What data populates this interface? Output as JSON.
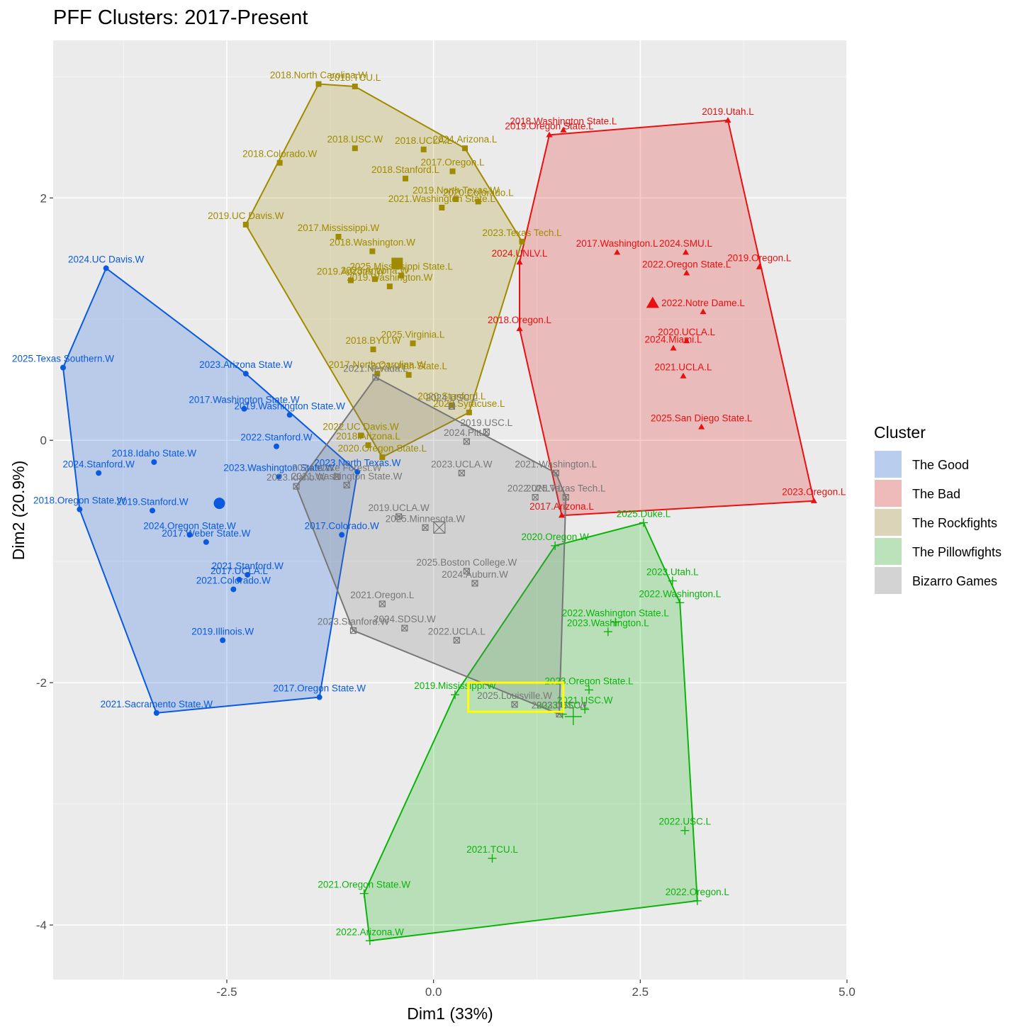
{
  "chart_data": {
    "type": "scatter",
    "title": "PFF Clusters: 2017-Present",
    "xlabel": "Dim1 (33%)",
    "ylabel": "Dim2 (20.9%)",
    "xlim": [
      -4.6,
      5.0
    ],
    "ylim": [
      -4.45,
      3.3
    ],
    "xticks": [
      -2.5,
      0.0,
      2.5,
      5.0
    ],
    "xtick_labels": [
      "-2.5",
      "0.0",
      "2.5",
      "5.0"
    ],
    "yticks": [
      -4,
      -2,
      0,
      2
    ],
    "ytick_labels": [
      "-4",
      "-2",
      "0",
      "2"
    ],
    "grid": true,
    "legend": {
      "title": "Cluster",
      "position": "right"
    },
    "series": [
      {
        "name": "The Good",
        "color": "#0a5ae0",
        "fill": "#b9cdef",
        "marker": "circle",
        "centroid": [
          -2.59,
          -0.52
        ],
        "hull": [
          [
            -3.96,
            1.42
          ],
          [
            -4.48,
            0.6
          ],
          [
            -4.28,
            -0.57
          ],
          [
            -3.35,
            -2.25
          ],
          [
            -1.38,
            -2.12
          ],
          [
            -0.92,
            -0.26
          ],
          [
            -2.27,
            0.55
          ]
        ],
        "points": [
          {
            "label": "2024.UC Davis.W",
            "x": -3.96,
            "y": 1.42
          },
          {
            "label": "2025.Texas Southern.W",
            "x": -4.48,
            "y": 0.6
          },
          {
            "label": "2023.Arizona State.W",
            "x": -2.27,
            "y": 0.55
          },
          {
            "label": "2017.Washington State.W",
            "x": -2.29,
            "y": 0.26
          },
          {
            "label": "2019.Washington State.W",
            "x": -1.74,
            "y": 0.21
          },
          {
            "label": "2022.Stanford.W",
            "x": -1.9,
            "y": -0.05
          },
          {
            "label": "2018.Idaho State.W",
            "x": -3.38,
            "y": -0.18
          },
          {
            "label": "2024.Stanford.W",
            "x": -4.05,
            "y": -0.27
          },
          {
            "label": "2023.Washington State.W",
            "x": -1.87,
            "y": -0.3
          },
          {
            "label": "2023.North Texas.W",
            "x": -0.92,
            "y": -0.26
          },
          {
            "label": "2018.Oregon State.W",
            "x": -4.28,
            "y": -0.57
          },
          {
            "label": "2019.Stanford.W",
            "x": -3.4,
            "y": -0.58
          },
          {
            "label": "2024.Oregon State.W",
            "x": -2.95,
            "y": -0.78
          },
          {
            "label": "2017.Weber State.W",
            "x": -2.75,
            "y": -0.84
          },
          {
            "label": "2017.Colorado.W",
            "x": -1.11,
            "y": -0.78
          },
          {
            "label": "2021.Stanford.W",
            "x": -2.25,
            "y": -1.11
          },
          {
            "label": "2017.UCLA.L",
            "x": -2.35,
            "y": -1.15
          },
          {
            "label": "2021.Colorado.W",
            "x": -2.42,
            "y": -1.23
          },
          {
            "label": "2019.Illinois.W",
            "x": -2.55,
            "y": -1.65
          },
          {
            "label": "2017.Oregon State.W",
            "x": -1.38,
            "y": -2.12
          },
          {
            "label": "2021.Sacramento State.W",
            "x": -3.35,
            "y": -2.25
          }
        ]
      },
      {
        "name": "The Bad",
        "color": "#e81010",
        "fill": "#efbaba",
        "marker": "triangle",
        "centroid": [
          2.65,
          1.13
        ],
        "hull": [
          [
            1.4,
            2.52
          ],
          [
            3.56,
            2.64
          ],
          [
            4.6,
            -0.5
          ],
          [
            1.55,
            -0.62
          ],
          [
            1.04,
            0.92
          ],
          [
            1.04,
            1.47
          ]
        ],
        "points": [
          {
            "label": "2019.Utah.L",
            "x": 3.56,
            "y": 2.64
          },
          {
            "label": "2019.Oregon State.L",
            "x": 1.4,
            "y": 2.52
          },
          {
            "label": "2018.Washington State.L",
            "x": 1.57,
            "y": 2.56
          },
          {
            "label": "2017.Washington.L",
            "x": 2.22,
            "y": 1.55
          },
          {
            "label": "2024.SMU.L",
            "x": 3.05,
            "y": 1.55
          },
          {
            "label": "2024.UNLV.L",
            "x": 1.04,
            "y": 1.47
          },
          {
            "label": "2022.Oregon State.L",
            "x": 3.06,
            "y": 1.38
          },
          {
            "label": "2019.Oregon.L",
            "x": 3.94,
            "y": 1.43
          },
          {
            "label": "2022.Notre Dame.L",
            "x": 3.26,
            "y": 1.06
          },
          {
            "label": "2018.Oregon.L",
            "x": 1.04,
            "y": 0.92
          },
          {
            "label": "2020.UCLA.L",
            "x": 3.06,
            "y": 0.82
          },
          {
            "label": "2024.Miami.L",
            "x": 2.9,
            "y": 0.76
          },
          {
            "label": "2021.UCLA.L",
            "x": 3.02,
            "y": 0.53
          },
          {
            "label": "2025.San Diego State.L",
            "x": 3.24,
            "y": 0.11
          },
          {
            "label": "2023.Oregon.L",
            "x": 4.6,
            "y": -0.5
          },
          {
            "label": "2017.Arizona.L",
            "x": 1.55,
            "y": -0.62
          }
        ]
      },
      {
        "name": "The Rockfights",
        "color": "#a08b00",
        "fill": "#dbd4b8",
        "marker": "square",
        "centroid": [
          -0.44,
          1.46
        ],
        "hull": [
          [
            -1.39,
            2.94
          ],
          [
            -0.95,
            2.92
          ],
          [
            0.38,
            2.41
          ],
          [
            1.07,
            1.64
          ],
          [
            0.43,
            0.23
          ],
          [
            -0.62,
            -0.14
          ],
          [
            -2.27,
            1.78
          ]
        ],
        "points": [
          {
            "label": "2018.North Carolina.W",
            "x": -1.39,
            "y": 2.94
          },
          {
            "label": "2018.TCU.L",
            "x": -0.95,
            "y": 2.92
          },
          {
            "label": "2018.USC.W",
            "x": -0.95,
            "y": 2.41
          },
          {
            "label": "2018.UCLA.L",
            "x": -0.12,
            "y": 2.4
          },
          {
            "label": "2024.Arizona.L",
            "x": 0.38,
            "y": 2.41
          },
          {
            "label": "2018.Colorado.W",
            "x": -1.86,
            "y": 2.29
          },
          {
            "label": "2017.Oregon.L",
            "x": 0.23,
            "y": 2.22
          },
          {
            "label": "2018.Stanford.L",
            "x": -0.34,
            "y": 2.16
          },
          {
            "label": "2019.North Texas.W",
            "x": 0.27,
            "y": 1.99
          },
          {
            "label": "2020.Colorado.L",
            "x": 0.54,
            "y": 1.97
          },
          {
            "label": "2021.Washington State.L",
            "x": 0.1,
            "y": 1.92
          },
          {
            "label": "2019.UC Davis.W",
            "x": -2.27,
            "y": 1.78
          },
          {
            "label": "2023.Texas Tech.L",
            "x": 1.07,
            "y": 1.64
          },
          {
            "label": "2017.Mississippi.W",
            "x": -1.15,
            "y": 1.68
          },
          {
            "label": "2018.Washington.W",
            "x": -0.74,
            "y": 1.56
          },
          {
            "label": "2025.Mississippi State.L",
            "x": -0.39,
            "y": 1.36
          },
          {
            "label": "2023.Arizona.W",
            "x": -0.71,
            "y": 1.33
          },
          {
            "label": "2019.Arizona.W",
            "x": -1.0,
            "y": 1.32
          },
          {
            "label": "2019.Washington.W",
            "x": -0.53,
            "y": 1.27
          },
          {
            "label": "2025.Virginia.L",
            "x": -0.25,
            "y": 0.8
          },
          {
            "label": "2018.BYU.W",
            "x": -0.73,
            "y": 0.75
          },
          {
            "label": "2017.North Carolina.W",
            "x": -0.68,
            "y": 0.55
          },
          {
            "label": "2021.Utah State.L",
            "x": -0.3,
            "y": 0.54
          },
          {
            "label": "2020.Stanford.L",
            "x": 0.22,
            "y": 0.29
          },
          {
            "label": "2022.Syracuse.L",
            "x": 0.43,
            "y": 0.23
          },
          {
            "label": "2022.UC Davis.W",
            "x": -0.88,
            "y": 0.04
          },
          {
            "label": "2018.Arizona.L",
            "x": -0.79,
            "y": -0.04
          },
          {
            "label": "2020.Oregon State.L",
            "x": -0.62,
            "y": -0.14
          }
        ]
      },
      {
        "name": "The Pillowfights",
        "color": "#0ab40a",
        "fill": "#bce2bc",
        "marker": "plus",
        "centroid": [
          1.69,
          -2.28
        ],
        "hull": [
          [
            2.54,
            -0.68
          ],
          [
            2.98,
            -1.34
          ],
          [
            3.19,
            -3.8
          ],
          [
            -0.77,
            -4.13
          ],
          [
            -0.84,
            -3.74
          ],
          [
            0.26,
            -2.1
          ],
          [
            1.47,
            -0.87
          ]
        ],
        "points": [
          {
            "label": "2025.Duke.L",
            "x": 2.54,
            "y": -0.68
          },
          {
            "label": "2020.Oregon.W",
            "x": 1.47,
            "y": -0.87
          },
          {
            "label": "2023.Utah.L",
            "x": 2.89,
            "y": -1.16
          },
          {
            "label": "2022.Washington.L",
            "x": 2.98,
            "y": -1.34
          },
          {
            "label": "2022.Washington State.L",
            "x": 2.2,
            "y": -1.5
          },
          {
            "label": "2023.Washington.L",
            "x": 2.11,
            "y": -1.58
          },
          {
            "label": "2023.Oregon State.L",
            "x": 1.88,
            "y": -2.06
          },
          {
            "label": "2019.Mississippi.W",
            "x": 0.26,
            "y": -2.1
          },
          {
            "label": "2021.USC.W",
            "x": 1.83,
            "y": -2.22
          },
          {
            "label": "2023.USC.L",
            "x": 1.56,
            "y": -2.26
          },
          {
            "label": "2022.USC.L",
            "x": 3.04,
            "y": -3.22
          },
          {
            "label": "2021.TCU.L",
            "x": 0.71,
            "y": -3.45
          },
          {
            "label": "2021.Oregon State.W",
            "x": -0.84,
            "y": -3.74
          },
          {
            "label": "2022.Oregon.L",
            "x": 3.19,
            "y": -3.8
          },
          {
            "label": "2022.Arizona.W",
            "x": -0.77,
            "y": -4.13
          }
        ]
      },
      {
        "name": "Bizarro Games",
        "color": "#777777",
        "fill": "#d3d3d3",
        "marker": "boxed-x",
        "centroid": [
          0.07,
          -0.72
        ],
        "hull": [
          [
            -0.7,
            0.52
          ],
          [
            1.48,
            -0.27
          ],
          [
            1.6,
            -0.47
          ],
          [
            1.52,
            -2.26
          ],
          [
            -0.97,
            -1.57
          ],
          [
            -1.66,
            -0.38
          ]
        ],
        "points": [
          {
            "label": "2021.Nevada.L",
            "x": -0.7,
            "y": 0.52
          },
          {
            "label": "2024.USC.L",
            "x": 0.22,
            "y": 0.28
          },
          {
            "label": "2019.USC.L",
            "x": 0.64,
            "y": 0.07
          },
          {
            "label": "2024.Pitt.L",
            "x": 0.4,
            "y": -0.01
          },
          {
            "label": "2023.UCLA.W",
            "x": 0.34,
            "y": -0.27
          },
          {
            "label": "2021.Washington.L",
            "x": 1.48,
            "y": -0.27
          },
          {
            "label": "2023.Idaho.W",
            "x": -1.66,
            "y": -0.38
          },
          {
            "label": "2024.Wake Forest.W",
            "x": -1.17,
            "y": -0.3
          },
          {
            "label": "2021.Washington State.W",
            "x": -1.05,
            "y": -0.37
          },
          {
            "label": "2022.UNLV.L",
            "x": 1.23,
            "y": -0.47
          },
          {
            "label": "2025.Texas Tech.L",
            "x": 1.6,
            "y": -0.47
          },
          {
            "label": "2019.UCLA.W",
            "x": -0.42,
            "y": -0.63
          },
          {
            "label": "2025.Minnesota.W",
            "x": -0.1,
            "y": -0.72
          },
          {
            "label": "2025.Boston College.W",
            "x": 0.4,
            "y": -1.08
          },
          {
            "label": "2024.Auburn.W",
            "x": 0.5,
            "y": -1.18
          },
          {
            "label": "2021.Oregon.L",
            "x": -0.62,
            "y": -1.35
          },
          {
            "label": "2024.SDSU.W",
            "x": -0.35,
            "y": -1.55
          },
          {
            "label": "2023.Stanford.W",
            "x": -0.97,
            "y": -1.57
          },
          {
            "label": "2022.UCLA.L",
            "x": 0.28,
            "y": -1.65
          },
          {
            "label": "2025.Louisville.W",
            "x": 0.98,
            "y": -2.18
          },
          {
            "label": "2023.USC.W",
            "x": 1.52,
            "y": -2.26
          }
        ]
      }
    ],
    "highlight_box": {
      "x": [
        0.42,
        1.57
      ],
      "y": [
        -2.0,
        -2.24
      ],
      "color": "#ffff00"
    }
  }
}
